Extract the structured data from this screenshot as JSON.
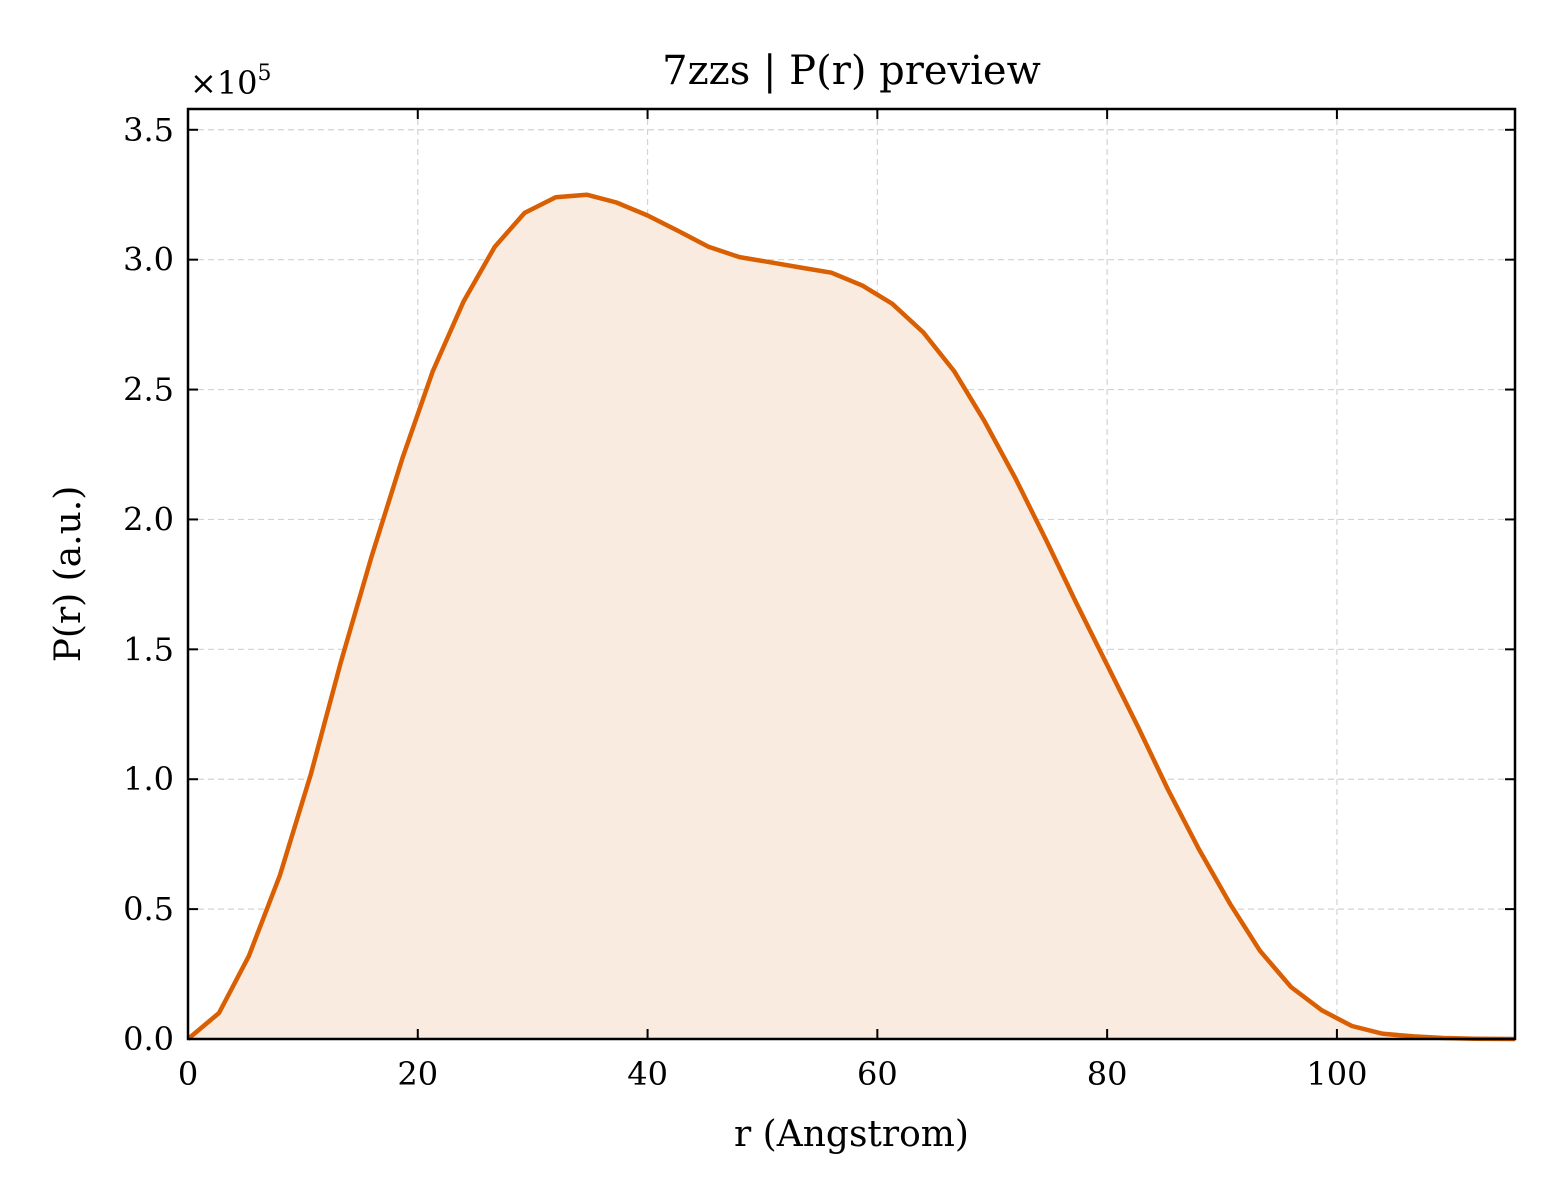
{
  "chart_data": {
    "type": "area",
    "title": "7zzs | P(r) preview",
    "xlabel": "r (Angstrom)",
    "ylabel": "P(r) (a.u.)",
    "y_offset_prefix": "×10",
    "y_offset_exponent": "5",
    "xlim": [
      0,
      115.5
    ],
    "ylim": [
      0,
      3.58
    ],
    "xticks": [
      0,
      20,
      40,
      60,
      80,
      100
    ],
    "xtick_labels": [
      "0",
      "20",
      "40",
      "60",
      "80",
      "100"
    ],
    "yticks": [
      0,
      0.5,
      1.0,
      1.5,
      2.0,
      2.5,
      3.0,
      3.5
    ],
    "ytick_labels": [
      "0.0",
      "0.5",
      "1.0",
      "1.5",
      "2.0",
      "2.5",
      "3.0",
      "3.5"
    ],
    "grid": true,
    "line_color": "#d95f02",
    "fill_color": "#f9ebe0",
    "series": [
      {
        "x": [
          0,
          2.7,
          5.3,
          8.0,
          10.7,
          13.3,
          16.0,
          18.7,
          21.3,
          24.0,
          26.7,
          29.3,
          32.0,
          34.7,
          37.3,
          40.0,
          42.7,
          45.3,
          48.0,
          50.7,
          53.3,
          56.0,
          58.7,
          61.3,
          64.0,
          66.7,
          69.3,
          72.0,
          74.7,
          77.3,
          80.0,
          82.7,
          85.3,
          88.0,
          90.7,
          93.3,
          96.0,
          98.7,
          101.3,
          104.0,
          106.7,
          109.3,
          112.0,
          115.5
        ],
        "y": [
          0.0,
          0.1,
          0.32,
          0.63,
          1.02,
          1.45,
          1.86,
          2.24,
          2.57,
          2.84,
          3.05,
          3.18,
          3.24,
          3.25,
          3.22,
          3.17,
          3.11,
          3.05,
          3.01,
          2.99,
          2.97,
          2.95,
          2.9,
          2.83,
          2.72,
          2.57,
          2.38,
          2.16,
          1.92,
          1.68,
          1.44,
          1.2,
          0.96,
          0.73,
          0.52,
          0.34,
          0.2,
          0.11,
          0.05,
          0.02,
          0.01,
          0.004,
          0.001,
          0.0
        ]
      }
    ]
  }
}
